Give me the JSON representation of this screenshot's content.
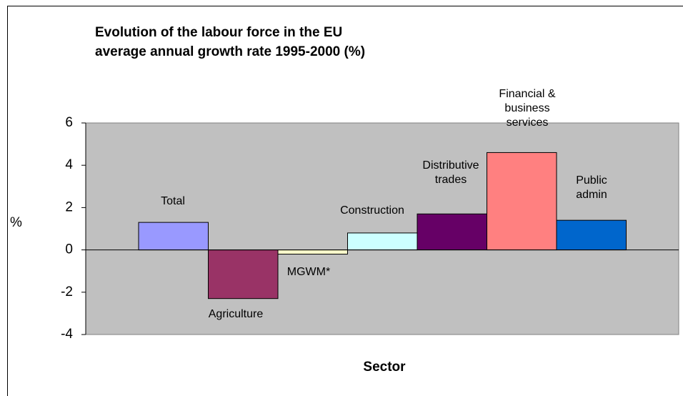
{
  "chart_data": {
    "type": "bar",
    "title": "Evolution of the labour force in the EU",
    "subtitle": "average annual growth rate 1995-2000 (%)",
    "ylabel": "%",
    "xlabel": "Sector",
    "categories": [
      "Total",
      "Agriculture",
      "MGWM*",
      "Construction",
      "Distributive\ntrades",
      "Financial &\nbusiness\nservices",
      "Public\nadmin"
    ],
    "values": [
      1.3,
      -2.3,
      -0.2,
      0.8,
      1.7,
      4.6,
      1.4
    ],
    "colors": [
      "#9999ff",
      "#993366",
      "#ffffcc",
      "#ccffff",
      "#660066",
      "#ff8080",
      "#0066cc"
    ],
    "ylim": [
      -4,
      6
    ],
    "yticks": [
      -4,
      -2,
      0,
      2,
      4,
      6
    ],
    "plot_background": "#c0c0c0"
  }
}
